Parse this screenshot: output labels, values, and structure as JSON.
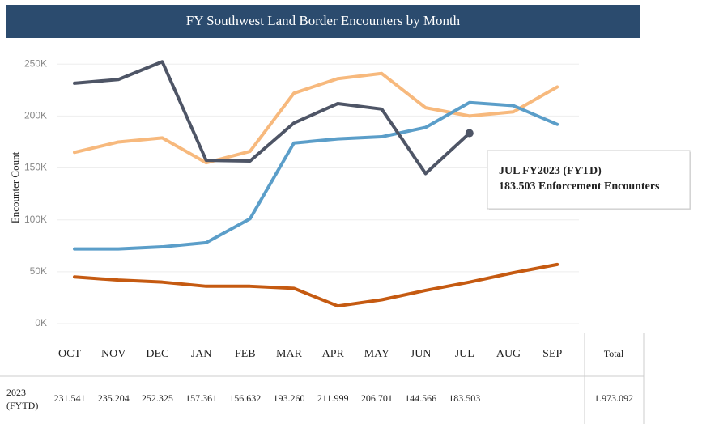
{
  "chart_data": {
    "type": "line",
    "title": "FY Southwest Land Border Encounters by Month",
    "ylabel": "Encounter Count",
    "categories": [
      "OCT",
      "NOV",
      "DEC",
      "JAN",
      "FEB",
      "MAR",
      "APR",
      "MAY",
      "JUN",
      "JUL",
      "AUG",
      "SEP"
    ],
    "ylim": [
      0,
      265000
    ],
    "yticks": [
      {
        "value": 0,
        "label": "0K"
      },
      {
        "value": 50000,
        "label": "50K"
      },
      {
        "value": 100000,
        "label": "100K"
      },
      {
        "value": 150000,
        "label": "150K"
      },
      {
        "value": 200000,
        "label": "200K"
      },
      {
        "value": 250000,
        "label": "250K"
      }
    ],
    "grid": true,
    "series": [
      {
        "color": "#f7b97d",
        "values": [
          165000,
          175000,
          179000,
          155000,
          166000,
          222000,
          236000,
          241000,
          208000,
          200000,
          204000,
          228000
        ]
      },
      {
        "color": "#5b9ec9",
        "values": [
          72000,
          72000,
          74000,
          78000,
          101000,
          174000,
          178000,
          180000,
          189000,
          213000,
          210000,
          192000
        ]
      },
      {
        "color": "#c55a11",
        "values": [
          45000,
          42000,
          40000,
          36000,
          36000,
          34000,
          17000,
          23000,
          32000,
          40000,
          49000,
          57000
        ]
      },
      {
        "color": "#4e5566",
        "values": [
          231541,
          235204,
          252325,
          157361,
          156632,
          193260,
          211999,
          206701,
          144566,
          183503,
          null,
          null
        ]
      }
    ],
    "annotation": {
      "series": 3,
      "index": 9,
      "title": "JUL FY2023 (FYTD)",
      "text": "183.503 Enforcement Encounters"
    }
  },
  "table": {
    "row_label": [
      "2023",
      "(FYTD)"
    ],
    "values": [
      "231.541",
      "235.204",
      "252.325",
      "157.361",
      "156.632",
      "193.260",
      "211.999",
      "206.701",
      "144.566",
      "183.503"
    ],
    "total_header": "Total",
    "total": "1.973.092"
  }
}
